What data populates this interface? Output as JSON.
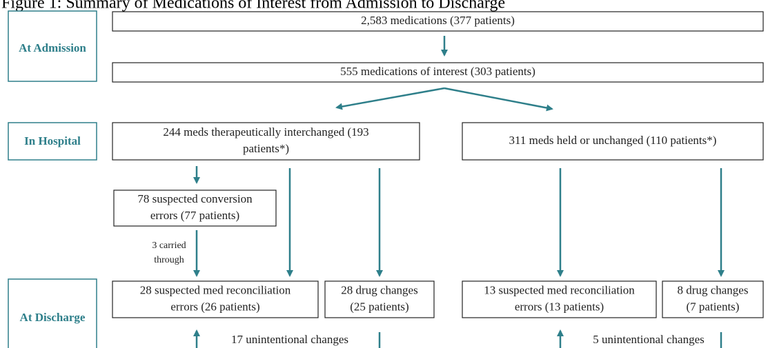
{
  "title": "Figure 1: Summary of Medications of Interest from Admission to Discharge",
  "stages": [
    "At Admission",
    "In Hospital",
    "At Discharge"
  ],
  "nodes": [
    {
      "lines": [
        "2,583 medications (377 patients)"
      ]
    },
    {
      "lines": [
        "555 medications of interest (303 patients)"
      ]
    },
    {
      "lines": [
        "244 meds therapeutically interchanged (193",
        "patients*)"
      ]
    },
    {
      "lines": [
        "311 meds held or unchanged (110 patients*)"
      ]
    },
    {
      "lines": [
        "78 suspected conversion",
        "errors (77 patients)"
      ]
    },
    {
      "lines": [
        "28 suspected med reconciliation",
        "errors (26 patients)"
      ]
    },
    {
      "lines": [
        "28 drug changes",
        "(25 patients)"
      ]
    },
    {
      "lines": [
        "13 suspected med reconciliation",
        "errors (13 patients)"
      ]
    },
    {
      "lines": [
        "8 drug changes",
        "(7 patients)"
      ]
    }
  ],
  "edge_labels": [
    {
      "lines": [
        "3 carried",
        "through"
      ]
    },
    {
      "lines": [
        "17 unintentional changes"
      ]
    },
    {
      "lines": [
        "5 unintentional changes"
      ]
    }
  ]
}
